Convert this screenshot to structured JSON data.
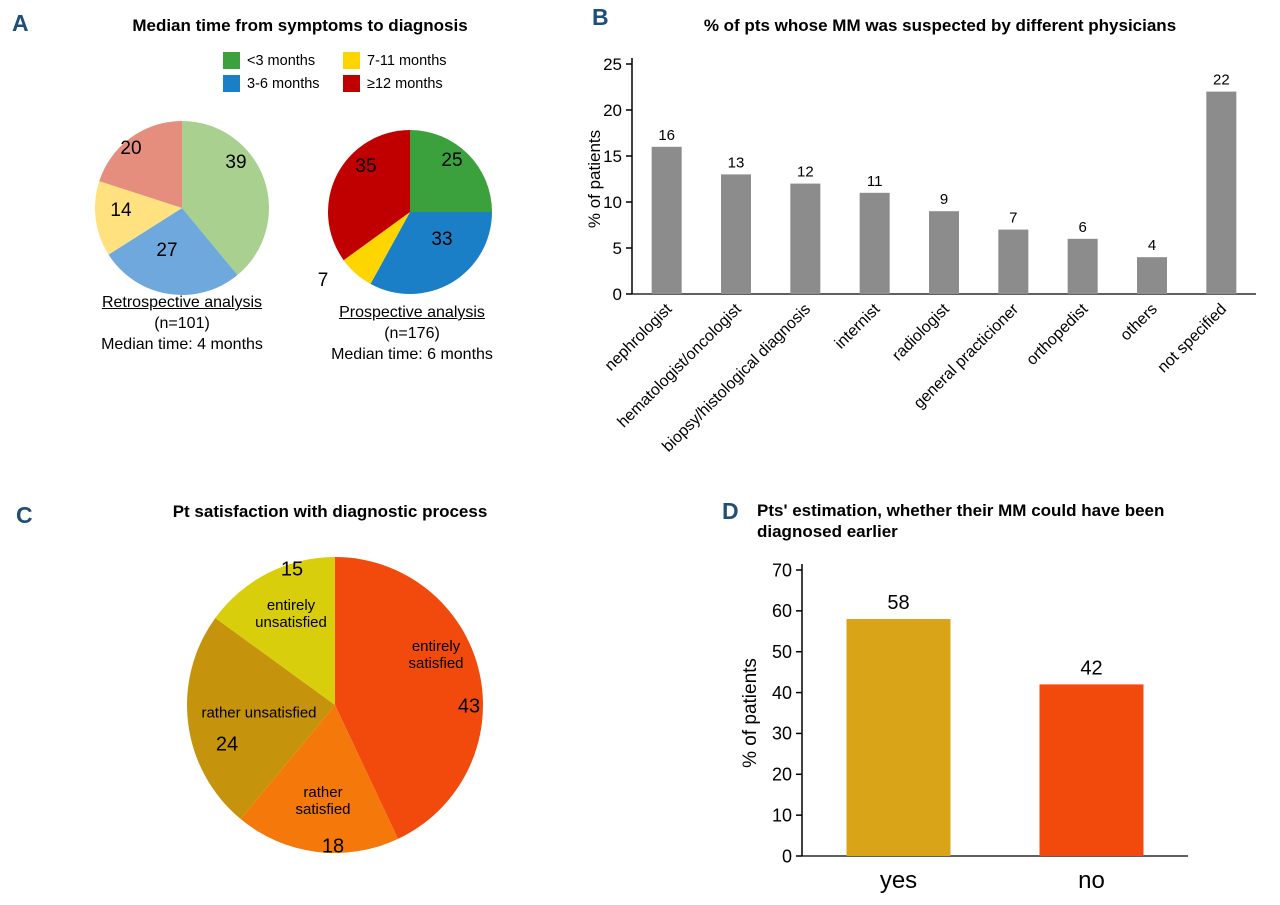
{
  "panels": {
    "a": {
      "letter": "A",
      "title": "Median time from symptoms to diagnosis",
      "legend_position": "above-right"
    },
    "b": {
      "letter": "B"
    },
    "c": {
      "letter": "C"
    },
    "d": {
      "letter": "D"
    }
  },
  "chart_data": [
    {
      "id": "pie_retrospective",
      "type": "pie",
      "panel": "A",
      "title": "Retrospective analysis",
      "subtitle": "(n=101)",
      "note": "Median time: 4 months",
      "categories": [
        "<3 months",
        "3-6 months",
        "7-11 months",
        "≥12 months"
      ],
      "values": [
        39,
        27,
        14,
        20
      ],
      "colors": [
        "#A9D08E",
        "#6FA8DC",
        "#FFE180",
        "#E58E7E"
      ],
      "start": "top",
      "direction": "clockwise"
    },
    {
      "id": "pie_prospective",
      "type": "pie",
      "panel": "A",
      "title": "Prospective analysis",
      "subtitle": "(n=176)",
      "note": "Median time: 6 months",
      "categories": [
        "<3 months",
        "3-6 months",
        "7-11 months",
        "≥12 months"
      ],
      "values": [
        25,
        33,
        7,
        35
      ],
      "colors": [
        "#3AA13C",
        "#1B7FC8",
        "#FFD500",
        "#C00000"
      ],
      "start": "top",
      "direction": "clockwise"
    },
    {
      "id": "bar_physicians",
      "type": "bar",
      "panel": "B",
      "title": "% of pts whose MM was suspected by different physicians",
      "xlabel": "",
      "ylabel": "% of patients",
      "ylim": [
        0,
        25
      ],
      "yticks": [
        0,
        5,
        10,
        15,
        20,
        25
      ],
      "categories": [
        "nephrologist",
        "hematologist/oncologist",
        "biopsy/histological diagnosis",
        "internist",
        "radiologist",
        "general practicioner",
        "orthopedist",
        "others",
        "not specified"
      ],
      "values": [
        16,
        13,
        12,
        11,
        9,
        7,
        6,
        4,
        22
      ],
      "bar_color": "#8C8C8C",
      "grid": false,
      "legend": "none"
    },
    {
      "id": "pie_satisfaction",
      "type": "pie",
      "panel": "C",
      "title": "Pt satisfaction with diagnostic process",
      "categories": [
        "entirely satisfied",
        "rather satisfied",
        "rather unsatisfied",
        "entirely unsatisfied"
      ],
      "values": [
        43,
        18,
        24,
        15
      ],
      "colors": [
        "#F24A0C",
        "#F5780A",
        "#C6940C",
        "#D9CE0C"
      ],
      "start": "top",
      "direction": "clockwise"
    },
    {
      "id": "bar_estimation",
      "type": "bar",
      "panel": "D",
      "title": "Pts' estimation, whether their MM could have been diagnosed earlier",
      "xlabel": "",
      "ylabel": "% of patients",
      "ylim": [
        0,
        70
      ],
      "yticks": [
        0,
        10,
        20,
        30,
        40,
        50,
        60,
        70
      ],
      "categories": [
        "yes",
        "no"
      ],
      "values": [
        58,
        42
      ],
      "colors": [
        "#D9A418",
        "#F24A0C"
      ],
      "grid": false,
      "legend": "none"
    }
  ]
}
